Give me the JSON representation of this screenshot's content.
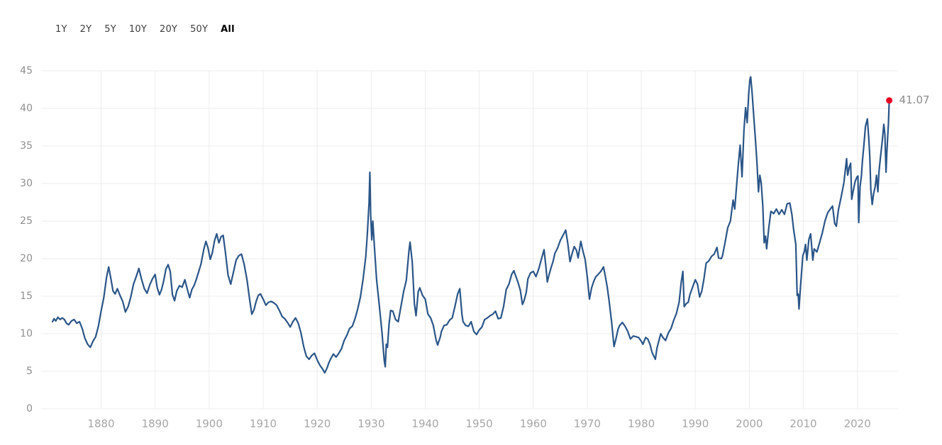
{
  "page": {
    "background_color": "#ffffff"
  },
  "toolbar": {
    "ranges": [
      {
        "label": "1Y",
        "selected": false
      },
      {
        "label": "2Y",
        "selected": false
      },
      {
        "label": "5Y",
        "selected": false
      },
      {
        "label": "10Y",
        "selected": false
      },
      {
        "label": "20Y",
        "selected": false
      },
      {
        "label": "50Y",
        "selected": false
      },
      {
        "label": "All",
        "selected": true
      }
    ]
  },
  "chart_data": {
    "type": "line",
    "title": "",
    "xlabel": "",
    "ylabel": "",
    "xlim": [
      1871,
      2027
    ],
    "ylim": [
      0,
      45
    ],
    "x_ticks": [
      1880,
      1890,
      1900,
      1910,
      1920,
      1930,
      1940,
      1950,
      1960,
      1970,
      1980,
      1990,
      2000,
      2010,
      2020
    ],
    "y_ticks": [
      0,
      5,
      10,
      15,
      20,
      25,
      30,
      35,
      40,
      45
    ],
    "grid": true,
    "legend_position": "none",
    "colors": {
      "line": "#2a5588",
      "endpoint_dot": "#e60023",
      "grid": "#ececec",
      "y_tick_label": "#8f8f8f",
      "x_tick_label": "#a6a6a6",
      "endpoint_label": "#8c8c8c"
    },
    "endpoint": {
      "x": 2025.9,
      "value": 41.07,
      "label": "41.07"
    },
    "points": [
      [
        1871,
        11.6
      ],
      [
        1871.3,
        12
      ],
      [
        1871.6,
        11.7
      ],
      [
        1872,
        12.2
      ],
      [
        1872.4,
        11.9
      ],
      [
        1872.8,
        12.1
      ],
      [
        1873.2,
        11.9
      ],
      [
        1873.6,
        11.4
      ],
      [
        1874,
        11.2
      ],
      [
        1874.5,
        11.7
      ],
      [
        1875,
        11.9
      ],
      [
        1875.5,
        11.4
      ],
      [
        1876,
        11.6
      ],
      [
        1876.5,
        10.7
      ],
      [
        1877,
        9.4
      ],
      [
        1877.5,
        8.6
      ],
      [
        1878,
        8.2
      ],
      [
        1878.5,
        9
      ],
      [
        1879,
        9.6
      ],
      [
        1879.5,
        11
      ],
      [
        1880,
        13
      ],
      [
        1880.5,
        14.8
      ],
      [
        1881,
        17.5
      ],
      [
        1881.4,
        18.9
      ],
      [
        1881.8,
        17.4
      ],
      [
        1882.2,
        15.7
      ],
      [
        1882.6,
        15.3
      ],
      [
        1883,
        16
      ],
      [
        1883.5,
        15.1
      ],
      [
        1884,
        14.3
      ],
      [
        1884.5,
        12.9
      ],
      [
        1885,
        13.6
      ],
      [
        1885.5,
        14.9
      ],
      [
        1886,
        16.6
      ],
      [
        1886.5,
        17.6
      ],
      [
        1887,
        18.7
      ],
      [
        1887.5,
        17.2
      ],
      [
        1888,
        16
      ],
      [
        1888.5,
        15.4
      ],
      [
        1889,
        16.5
      ],
      [
        1889.5,
        17.3
      ],
      [
        1890,
        17.9
      ],
      [
        1890.4,
        16.1
      ],
      [
        1890.8,
        15.2
      ],
      [
        1891.2,
        15.9
      ],
      [
        1891.6,
        17.1
      ],
      [
        1892,
        18.6
      ],
      [
        1892.4,
        19.2
      ],
      [
        1892.8,
        18.3
      ],
      [
        1893.2,
        15.2
      ],
      [
        1893.6,
        14.4
      ],
      [
        1894,
        15.7
      ],
      [
        1894.5,
        16.4
      ],
      [
        1895,
        16.2
      ],
      [
        1895.5,
        17.2
      ],
      [
        1896,
        15.8
      ],
      [
        1896.4,
        14.8
      ],
      [
        1896.8,
        15.9
      ],
      [
        1897.2,
        16.4
      ],
      [
        1897.6,
        17.2
      ],
      [
        1898,
        18.1
      ],
      [
        1898.5,
        19.3
      ],
      [
        1899,
        21.2
      ],
      [
        1899.4,
        22.3
      ],
      [
        1899.8,
        21.4
      ],
      [
        1900.2,
        19.9
      ],
      [
        1900.6,
        20.8
      ],
      [
        1901,
        22.4
      ],
      [
        1901.4,
        23.3
      ],
      [
        1901.8,
        22.1
      ],
      [
        1902.2,
        22.9
      ],
      [
        1902.6,
        23.1
      ],
      [
        1903,
        20.9
      ],
      [
        1903.5,
        17.8
      ],
      [
        1904,
        16.6
      ],
      [
        1904.5,
        18.2
      ],
      [
        1905,
        19.8
      ],
      [
        1905.5,
        20.4
      ],
      [
        1906,
        20.6
      ],
      [
        1906.5,
        19.2
      ],
      [
        1907,
        17.2
      ],
      [
        1907.5,
        14.5
      ],
      [
        1907.9,
        12.6
      ],
      [
        1908.3,
        13.2
      ],
      [
        1908.7,
        14.3
      ],
      [
        1909.1,
        15.1
      ],
      [
        1909.5,
        15.3
      ],
      [
        1910,
        14.6
      ],
      [
        1910.5,
        13.8
      ],
      [
        1911,
        14.2
      ],
      [
        1911.5,
        14.3
      ],
      [
        1912,
        14.1
      ],
      [
        1912.5,
        13.8
      ],
      [
        1913,
        13.1
      ],
      [
        1913.5,
        12.3
      ],
      [
        1914,
        12
      ],
      [
        1914.5,
        11.5
      ],
      [
        1915,
        10.9
      ],
      [
        1915.5,
        11.6
      ],
      [
        1916,
        12.1
      ],
      [
        1916.5,
        11.4
      ],
      [
        1917,
        10.1
      ],
      [
        1917.5,
        8.3
      ],
      [
        1918,
        7
      ],
      [
        1918.5,
        6.6
      ],
      [
        1919,
        7.1
      ],
      [
        1919.5,
        7.4
      ],
      [
        1920,
        6.5
      ],
      [
        1920.5,
        5.8
      ],
      [
        1921,
        5.3
      ],
      [
        1921.4,
        4.8
      ],
      [
        1921.8,
        5.4
      ],
      [
        1922.2,
        6.2
      ],
      [
        1922.6,
        6.8
      ],
      [
        1923,
        7.3
      ],
      [
        1923.5,
        6.9
      ],
      [
        1924,
        7.4
      ],
      [
        1924.5,
        8
      ],
      [
        1925,
        9.1
      ],
      [
        1925.5,
        9.8
      ],
      [
        1926,
        10.7
      ],
      [
        1926.5,
        11
      ],
      [
        1927,
        12
      ],
      [
        1927.5,
        13.3
      ],
      [
        1928,
        14.9
      ],
      [
        1928.5,
        17.3
      ],
      [
        1929,
        20.3
      ],
      [
        1929.3,
        23.5
      ],
      [
        1929.6,
        27.5
      ],
      [
        1929.75,
        31.5
      ],
      [
        1929.9,
        26
      ],
      [
        1930.1,
        22.5
      ],
      [
        1930.3,
        25
      ],
      [
        1930.6,
        21.5
      ],
      [
        1931,
        17.2
      ],
      [
        1931.5,
        13.8
      ],
      [
        1932,
        10.2
      ],
      [
        1932.4,
        6.5
      ],
      [
        1932.6,
        5.6
      ],
      [
        1932.8,
        8.6
      ],
      [
        1933,
        8.2
      ],
      [
        1933.3,
        11.2
      ],
      [
        1933.6,
        13.1
      ],
      [
        1934,
        13
      ],
      [
        1934.5,
        11.9
      ],
      [
        1935,
        11.6
      ],
      [
        1935.5,
        13.6
      ],
      [
        1936,
        15.6
      ],
      [
        1936.5,
        17.1
      ],
      [
        1937,
        21.1
      ],
      [
        1937.2,
        22.2
      ],
      [
        1937.6,
        19.5
      ],
      [
        1938,
        14
      ],
      [
        1938.3,
        12.4
      ],
      [
        1938.7,
        15.6
      ],
      [
        1939,
        16.1
      ],
      [
        1939.5,
        15.1
      ],
      [
        1940,
        14.6
      ],
      [
        1940.5,
        12.6
      ],
      [
        1941,
        12.1
      ],
      [
        1941.5,
        11.1
      ],
      [
        1942,
        9.2
      ],
      [
        1942.3,
        8.5
      ],
      [
        1942.8,
        9.6
      ],
      [
        1943,
        10.3
      ],
      [
        1943.5,
        11.1
      ],
      [
        1944,
        11.2
      ],
      [
        1944.5,
        11.8
      ],
      [
        1945,
        12.1
      ],
      [
        1945.5,
        13.6
      ],
      [
        1946,
        15.3
      ],
      [
        1946.4,
        16
      ],
      [
        1946.8,
        12.6
      ],
      [
        1947,
        11.6
      ],
      [
        1947.5,
        11.1
      ],
      [
        1948,
        11
      ],
      [
        1948.5,
        11.6
      ],
      [
        1949,
        10.3
      ],
      [
        1949.5,
        9.9
      ],
      [
        1950,
        10.5
      ],
      [
        1950.5,
        10.9
      ],
      [
        1951,
        11.9
      ],
      [
        1951.5,
        12.1
      ],
      [
        1952,
        12.4
      ],
      [
        1952.5,
        12.6
      ],
      [
        1953,
        13
      ],
      [
        1953.5,
        12
      ],
      [
        1954,
        12.1
      ],
      [
        1954.5,
        13.6
      ],
      [
        1955,
        15.9
      ],
      [
        1955.5,
        16.6
      ],
      [
        1956,
        17.9
      ],
      [
        1956.4,
        18.4
      ],
      [
        1956.8,
        17.6
      ],
      [
        1957.2,
        16.8
      ],
      [
        1957.6,
        15.8
      ],
      [
        1958,
        13.9
      ],
      [
        1958.3,
        14.4
      ],
      [
        1958.7,
        15.5
      ],
      [
        1959,
        17.3
      ],
      [
        1959.5,
        18.1
      ],
      [
        1960,
        18.3
      ],
      [
        1960.5,
        17.6
      ],
      [
        1961,
        18.6
      ],
      [
        1961.5,
        19.9
      ],
      [
        1962,
        21.2
      ],
      [
        1962.3,
        19.2
      ],
      [
        1962.6,
        16.9
      ],
      [
        1962.9,
        17.8
      ],
      [
        1963.3,
        18.8
      ],
      [
        1963.7,
        19.7
      ],
      [
        1964,
        20.7
      ],
      [
        1964.5,
        21.4
      ],
      [
        1965,
        22.4
      ],
      [
        1965.5,
        23.1
      ],
      [
        1966,
        23.8
      ],
      [
        1966.4,
        22
      ],
      [
        1966.8,
        19.6
      ],
      [
        1967.2,
        20.7
      ],
      [
        1967.6,
        21.6
      ],
      [
        1968,
        21.1
      ],
      [
        1968.3,
        20.1
      ],
      [
        1968.8,
        22.3
      ],
      [
        1969.2,
        21
      ],
      [
        1969.6,
        19.9
      ],
      [
        1970,
        17.6
      ],
      [
        1970.4,
        14.6
      ],
      [
        1970.8,
        16.1
      ],
      [
        1971.2,
        17
      ],
      [
        1971.6,
        17.6
      ],
      [
        1972,
        17.9
      ],
      [
        1972.5,
        18.3
      ],
      [
        1973,
        18.9
      ],
      [
        1973.3,
        17.8
      ],
      [
        1973.7,
        16.2
      ],
      [
        1974,
        14.6
      ],
      [
        1974.5,
        11.6
      ],
      [
        1974.95,
        8.3
      ],
      [
        1975.3,
        9.3
      ],
      [
        1975.7,
        10.6
      ],
      [
        1976,
        11.1
      ],
      [
        1976.5,
        11.5
      ],
      [
        1977,
        11
      ],
      [
        1977.5,
        10.3
      ],
      [
        1978,
        9.3
      ],
      [
        1978.5,
        9.7
      ],
      [
        1979,
        9.6
      ],
      [
        1979.5,
        9.5
      ],
      [
        1980,
        9
      ],
      [
        1980.3,
        8.6
      ],
      [
        1980.8,
        9.5
      ],
      [
        1981.2,
        9.3
      ],
      [
        1981.6,
        8.6
      ],
      [
        1982,
        7.5
      ],
      [
        1982.4,
        6.9
      ],
      [
        1982.6,
        6.6
      ],
      [
        1982.9,
        8.1
      ],
      [
        1983.2,
        8.9
      ],
      [
        1983.6,
        10
      ],
      [
        1984,
        9.5
      ],
      [
        1984.5,
        9.1
      ],
      [
        1985,
        10.1
      ],
      [
        1985.5,
        10.7
      ],
      [
        1986,
        11.8
      ],
      [
        1986.5,
        12.7
      ],
      [
        1987,
        14.2
      ],
      [
        1987.4,
        16.9
      ],
      [
        1987.7,
        18.3
      ],
      [
        1987.95,
        13.6
      ],
      [
        1988.3,
        14
      ],
      [
        1988.7,
        14.2
      ],
      [
        1989,
        15.2
      ],
      [
        1989.5,
        16.2
      ],
      [
        1990,
        17.2
      ],
      [
        1990.4,
        16.6
      ],
      [
        1990.8,
        14.9
      ],
      [
        1991.2,
        15.7
      ],
      [
        1991.6,
        17.3
      ],
      [
        1992,
        19.4
      ],
      [
        1992.5,
        19.7
      ],
      [
        1993,
        20.3
      ],
      [
        1993.5,
        20.6
      ],
      [
        1994,
        21.5
      ],
      [
        1994.3,
        20.1
      ],
      [
        1994.8,
        20
      ],
      [
        1995,
        20.3
      ],
      [
        1995.5,
        22.1
      ],
      [
        1996,
        24.1
      ],
      [
        1996.5,
        25
      ],
      [
        1997,
        27.8
      ],
      [
        1997.3,
        26.6
      ],
      [
        1997.8,
        31.1
      ],
      [
        1998,
        32.9
      ],
      [
        1998.3,
        35.1
      ],
      [
        1998.65,
        30.9
      ],
      [
        1999,
        37.1
      ],
      [
        1999.3,
        40.1
      ],
      [
        1999.6,
        38.1
      ],
      [
        1999.9,
        42.1
      ],
      [
        2000.1,
        43.8
      ],
      [
        2000.25,
        44.2
      ],
      [
        2000.5,
        42.2
      ],
      [
        2000.8,
        39.1
      ],
      [
        2001.1,
        36.1
      ],
      [
        2001.4,
        33
      ],
      [
        2001.7,
        28.9
      ],
      [
        2001.95,
        31.1
      ],
      [
        2002.2,
        30.1
      ],
      [
        2002.5,
        27
      ],
      [
        2002.75,
        22.1
      ],
      [
        2003,
        23
      ],
      [
        2003.2,
        21.3
      ],
      [
        2003.6,
        24.1
      ],
      [
        2004,
        26.3
      ],
      [
        2004.5,
        26
      ],
      [
        2005,
        26.6
      ],
      [
        2005.5,
        25.9
      ],
      [
        2006,
        26.5
      ],
      [
        2006.5,
        25.9
      ],
      [
        2007,
        27.3
      ],
      [
        2007.5,
        27.4
      ],
      [
        2007.9,
        25.8
      ],
      [
        2008.2,
        23.9
      ],
      [
        2008.6,
        21.9
      ],
      [
        2008.85,
        15.1
      ],
      [
        2009.05,
        15.3
      ],
      [
        2009.2,
        13.3
      ],
      [
        2009.5,
        16.5
      ],
      [
        2009.9,
        20.4
      ],
      [
        2010.2,
        21
      ],
      [
        2010.4,
        21.9
      ],
      [
        2010.65,
        19.8
      ],
      [
        2011,
        22.5
      ],
      [
        2011.35,
        23.3
      ],
      [
        2011.75,
        19.8
      ],
      [
        2012,
        21.3
      ],
      [
        2012.5,
        20.9
      ],
      [
        2013,
        22.1
      ],
      [
        2013.5,
        23.4
      ],
      [
        2014,
        25
      ],
      [
        2014.5,
        26.1
      ],
      [
        2015,
        26.6
      ],
      [
        2015.4,
        27
      ],
      [
        2015.8,
        24.7
      ],
      [
        2016.1,
        24.3
      ],
      [
        2016.5,
        26.5
      ],
      [
        2017,
        28.2
      ],
      [
        2017.5,
        30.1
      ],
      [
        2018,
        33.3
      ],
      [
        2018.2,
        31.1
      ],
      [
        2018.5,
        32.2
      ],
      [
        2018.75,
        32.7
      ],
      [
        2018.95,
        27.9
      ],
      [
        2019.2,
        28.9
      ],
      [
        2019.6,
        30.3
      ],
      [
        2019.95,
        30.9
      ],
      [
        2020.1,
        31
      ],
      [
        2020.25,
        24.8
      ],
      [
        2020.5,
        29.6
      ],
      [
        2020.75,
        31
      ],
      [
        2020.95,
        33.1
      ],
      [
        2021.2,
        35
      ],
      [
        2021.5,
        37.6
      ],
      [
        2021.85,
        38.6
      ],
      [
        2022.1,
        36.1
      ],
      [
        2022.3,
        33.6
      ],
      [
        2022.5,
        29.1
      ],
      [
        2022.75,
        27.2
      ],
      [
        2023,
        28.6
      ],
      [
        2023.3,
        29.6
      ],
      [
        2023.55,
        31.1
      ],
      [
        2023.8,
        28.9
      ],
      [
        2024,
        31.6
      ],
      [
        2024.3,
        33.6
      ],
      [
        2024.6,
        35.6
      ],
      [
        2024.9,
        37.9
      ],
      [
        2025.1,
        36.5
      ],
      [
        2025.3,
        31.5
      ],
      [
        2025.45,
        34
      ],
      [
        2025.6,
        36
      ],
      [
        2025.75,
        38
      ],
      [
        2025.9,
        41.07
      ]
    ]
  }
}
